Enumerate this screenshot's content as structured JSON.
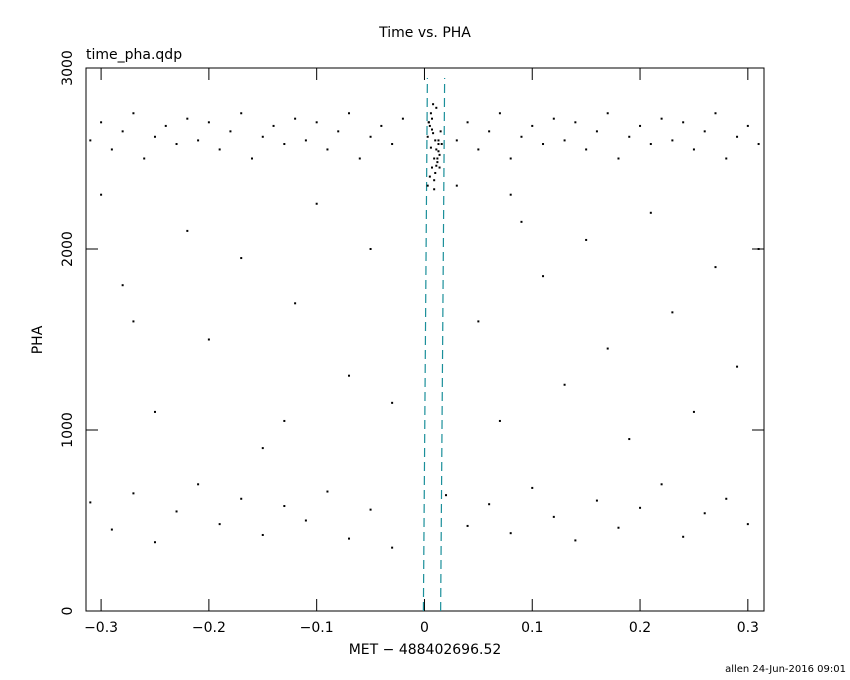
{
  "chart_data": {
    "type": "scatter",
    "title": "Time vs. PHA",
    "subtitle": "time_pha.qdp",
    "x_label": "MET − 488402696.52",
    "y_label": "PHA",
    "footer": "allen 24-Jun-2016 09:01",
    "color": "#000000",
    "marker_color": "#1b8f9a",
    "xlim": [
      -0.314,
      0.315
    ],
    "ylim": [
      0,
      3000
    ],
    "xticks": [
      {
        "value": -0.3,
        "label": "−0.3"
      },
      {
        "value": -0.2,
        "label": "−0.2"
      },
      {
        "value": -0.1,
        "label": "−0.1"
      },
      0,
      0.1,
      0.2,
      0.3
    ],
    "yticks": [
      0,
      1000,
      2000,
      3000
    ],
    "markers": [
      -0.001,
      0.015
    ],
    "x": [
      -0.31,
      -0.3,
      -0.29,
      -0.28,
      -0.27,
      -0.26,
      -0.25,
      -0.24,
      -0.23,
      -0.22,
      -0.21,
      -0.2,
      -0.19,
      -0.18,
      -0.17,
      -0.16,
      -0.15,
      -0.14,
      -0.13,
      -0.12,
      -0.11,
      -0.1,
      -0.09,
      -0.08,
      -0.07,
      -0.06,
      -0.05,
      -0.04,
      -0.03,
      -0.02,
      0.03,
      0.04,
      0.05,
      0.06,
      0.07,
      0.08,
      0.09,
      0.1,
      0.11,
      0.12,
      0.13,
      0.14,
      0.15,
      0.16,
      0.17,
      0.18,
      0.19,
      0.2,
      0.21,
      0.22,
      0.23,
      0.24,
      0.25,
      0.26,
      0.27,
      0.28,
      0.29,
      0.3,
      0.31,
      0.003,
      0.005,
      0.007,
      0.009,
      0.011,
      0.013,
      0.015,
      0.004,
      0.006,
      0.008,
      0.01,
      0.012,
      0.014,
      0.016,
      0.003,
      0.005,
      0.007,
      0.009,
      0.011,
      0.013,
      0.006,
      0.008,
      0.01,
      0.012,
      0.004,
      0.014,
      0.009,
      0.011,
      0.007,
      0.013,
      -0.3,
      -0.28,
      -0.25,
      -0.22,
      -0.2,
      -0.17,
      -0.15,
      -0.12,
      -0.1,
      -0.07,
      -0.05,
      -0.03,
      0.03,
      0.05,
      0.07,
      0.09,
      0.11,
      0.13,
      0.15,
      0.17,
      0.19,
      0.21,
      0.23,
      0.25,
      0.27,
      0.29,
      0.31,
      -0.13,
      0.08,
      -0.27,
      -0.31,
      -0.29,
      -0.27,
      -0.25,
      -0.23,
      -0.21,
      -0.19,
      -0.17,
      -0.15,
      -0.13,
      -0.11,
      -0.09,
      -0.07,
      -0.05,
      -0.03,
      0.02,
      0.04,
      0.06,
      0.08,
      0.1,
      0.12,
      0.14,
      0.16,
      0.18,
      0.2,
      0.22,
      0.24,
      0.26,
      0.28,
      0.3
    ],
    "values": [
      2600,
      2700,
      2550,
      2650,
      2750,
      2500,
      2620,
      2680,
      2580,
      2720,
      2600,
      2700,
      2550,
      2650,
      2750,
      2500,
      2620,
      2680,
      2580,
      2720,
      2600,
      2700,
      2550,
      2650,
      2750,
      2500,
      2620,
      2680,
      2580,
      2720,
      2600,
      2700,
      2550,
      2650,
      2750,
      2500,
      2620,
      2680,
      2580,
      2720,
      2600,
      2700,
      2550,
      2650,
      2750,
      2500,
      2620,
      2680,
      2580,
      2720,
      2600,
      2700,
      2550,
      2650,
      2750,
      2500,
      2620,
      2680,
      2580,
      2350,
      2400,
      2450,
      2500,
      2550,
      2600,
      2650,
      2700,
      2750,
      2800,
      2420,
      2480,
      2520,
      2580,
      2620,
      2680,
      2720,
      2380,
      2460,
      2540,
      2560,
      2640,
      2600,
      2500,
      2700,
      2450,
      2330,
      2780,
      2660,
      2580,
      2300,
      1800,
      1100,
      2100,
      1500,
      1950,
      900,
      1700,
      2250,
      1300,
      2000,
      1150,
      2350,
      1600,
      1050,
      2150,
      1850,
      1250,
      2050,
      1450,
      950,
      2200,
      1650,
      1100,
      1900,
      1350,
      2000,
      1050,
      2300,
      1600,
      600,
      450,
      650,
      380,
      550,
      700,
      480,
      620,
      420,
      580,
      500,
      660,
      400,
      560,
      350,
      640,
      470,
      590,
      430,
      680,
      520,
      390,
      610,
      460,
      570,
      700,
      410,
      540,
      620,
      480
    ]
  }
}
